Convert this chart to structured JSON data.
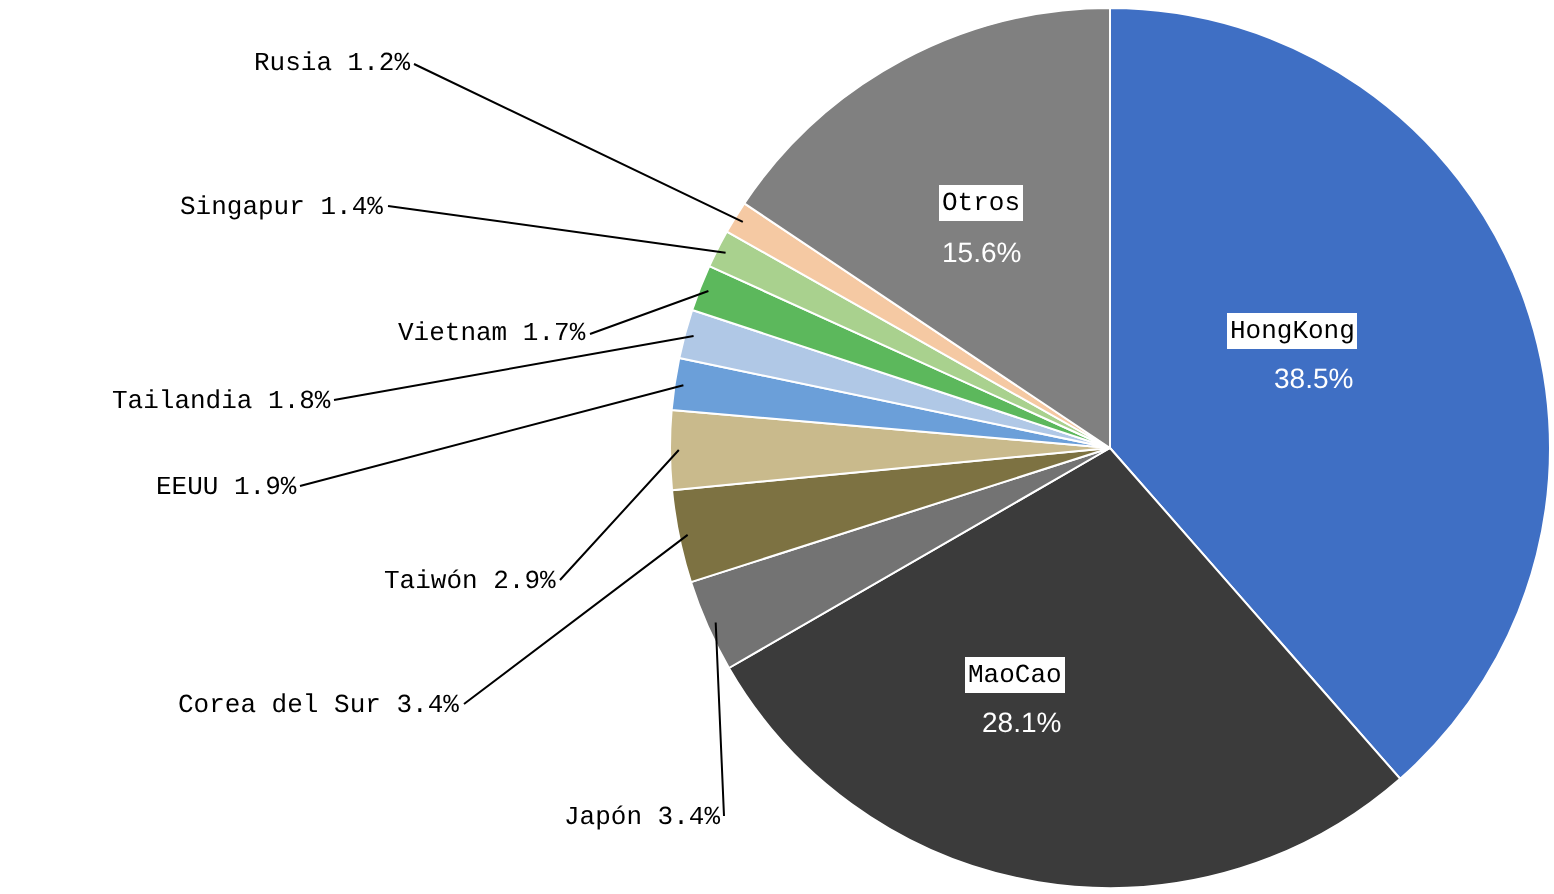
{
  "chart_data": {
    "type": "pie",
    "categories": [
      "HongKong",
      "MaoCao",
      "Japón",
      "Corea del Sur",
      "Taiwón",
      "EEUU",
      "Tailandia",
      "Vietnam",
      "Singapur",
      "Rusia",
      "Otros"
    ],
    "values": [
      38.5,
      28.1,
      3.4,
      3.4,
      2.9,
      1.9,
      1.8,
      1.7,
      1.4,
      1.2,
      15.6
    ],
    "colors": [
      "#3f6fc4",
      "#3b3b3b",
      "#737373",
      "#7d7242",
      "#c9ba8c",
      "#6b9fd9",
      "#b0c8e6",
      "#5cb85c",
      "#a9d18e",
      "#f5c9a3",
      "#808080"
    ],
    "value_labels": [
      "38.5%",
      "28.1%",
      "3.4%",
      "3.4%",
      "2.9%",
      "1.9%",
      "1.8%",
      "1.7%",
      "1.4%",
      "1.2%",
      "15.6%"
    ]
  }
}
